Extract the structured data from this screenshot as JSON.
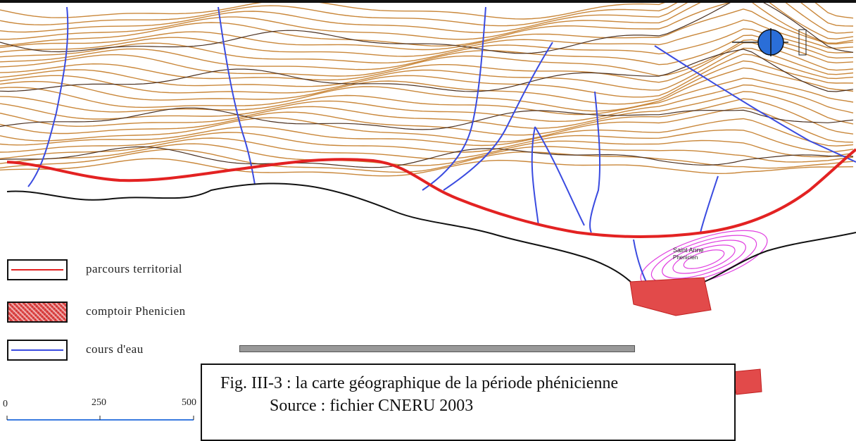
{
  "map": {
    "colors": {
      "contour": "#c9873a",
      "river": "#3a4be0",
      "territorial_route": "#e32222",
      "phoenician_site": "#e24a4a",
      "coast": "#111111",
      "magenta_contours": "#e040e0"
    },
    "icons": [
      "compass-icon"
    ]
  },
  "legend": {
    "items": [
      {
        "label": "parcours territorial",
        "symbol": "red-line"
      },
      {
        "label": "comptoir Phenicien",
        "symbol": "red-hatched-area"
      },
      {
        "label": "cours d'eau",
        "symbol": "blue-line"
      }
    ]
  },
  "scale_bar": {
    "labels": [
      "0",
      "250",
      "500"
    ]
  },
  "caption": {
    "title": "Fig. III-3 : la carte géographique de la période phénicienne",
    "source": "Source : fichier CNERU 2003"
  }
}
